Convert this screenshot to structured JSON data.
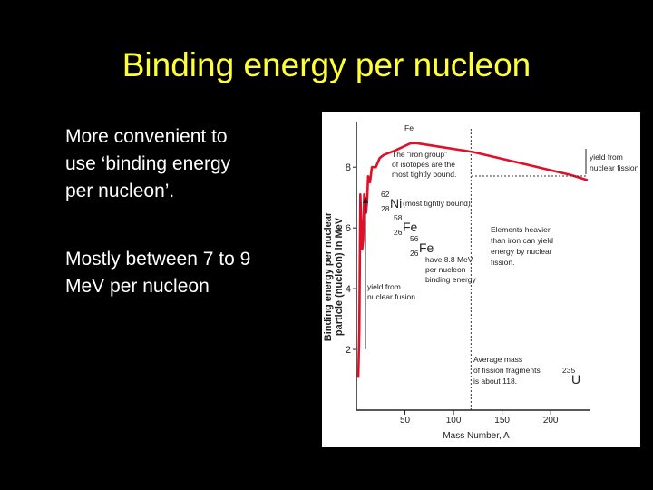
{
  "title": "Binding energy per nucleon",
  "paragraphs": [
    [
      "More convenient to",
      "use ‘binding energy",
      "per nucleon’."
    ],
    [
      "Mostly between 7 to 9",
      "MeV per nucleon"
    ]
  ],
  "chart_data": {
    "type": "line",
    "xlabel": "Mass Number, A",
    "ylabel": [
      "Binding energy per nuclear",
      "particle (nucleon) in MeV"
    ],
    "x": [
      1,
      2,
      3,
      4,
      6,
      7,
      8,
      9,
      10,
      11,
      12,
      14,
      16,
      20,
      24,
      28,
      40,
      56,
      62,
      80,
      100,
      120,
      140,
      160,
      180,
      200,
      220,
      238
    ],
    "y": [
      1.1,
      1.1,
      2.6,
      7.1,
      5.3,
      5.6,
      7.1,
      6.5,
      6.5,
      6.9,
      7.7,
      7.5,
      8.0,
      8.0,
      8.3,
      8.4,
      8.55,
      8.79,
      8.79,
      8.7,
      8.6,
      8.5,
      8.35,
      8.2,
      8.05,
      7.9,
      7.75,
      7.57
    ],
    "color": "#e0102a",
    "xlim": [
      0,
      240
    ],
    "ylim": [
      0,
      9.5
    ],
    "xticks": [
      50,
      100,
      150,
      200
    ],
    "yticks": [
      2,
      4,
      6,
      8
    ],
    "reference_lines": [
      {
        "x": 118
      }
    ],
    "annotations": {
      "peak": [
        "Fe"
      ],
      "iron_group": [
        "The “iron group”",
        "of isotopes are the",
        "most tightly bound."
      ],
      "ni62": {
        "mass": 62,
        "z": 28,
        "symbol": "Ni",
        "note": "(most tightly bound)"
      },
      "fe58": {
        "mass": 58,
        "z": 26,
        "symbol": "Fe"
      },
      "fe56": {
        "mass": 56,
        "z": 26,
        "symbol": "Fe"
      },
      "have": [
        "have 8.8 MeV",
        "per nucleon",
        "binding energy"
      ],
      "fusion": [
        "yield from",
        "nuclear fusion"
      ],
      "heavier": [
        "Elements heavier",
        "than iron can yield",
        "energy by nuclear",
        "fission."
      ],
      "fission": [
        "yield from",
        "nuclear fission"
      ],
      "average": [
        "Average mass",
        "of fission fragments",
        "is about 118."
      ],
      "u235": {
        "mass": 235,
        "symbol": "U"
      }
    }
  }
}
